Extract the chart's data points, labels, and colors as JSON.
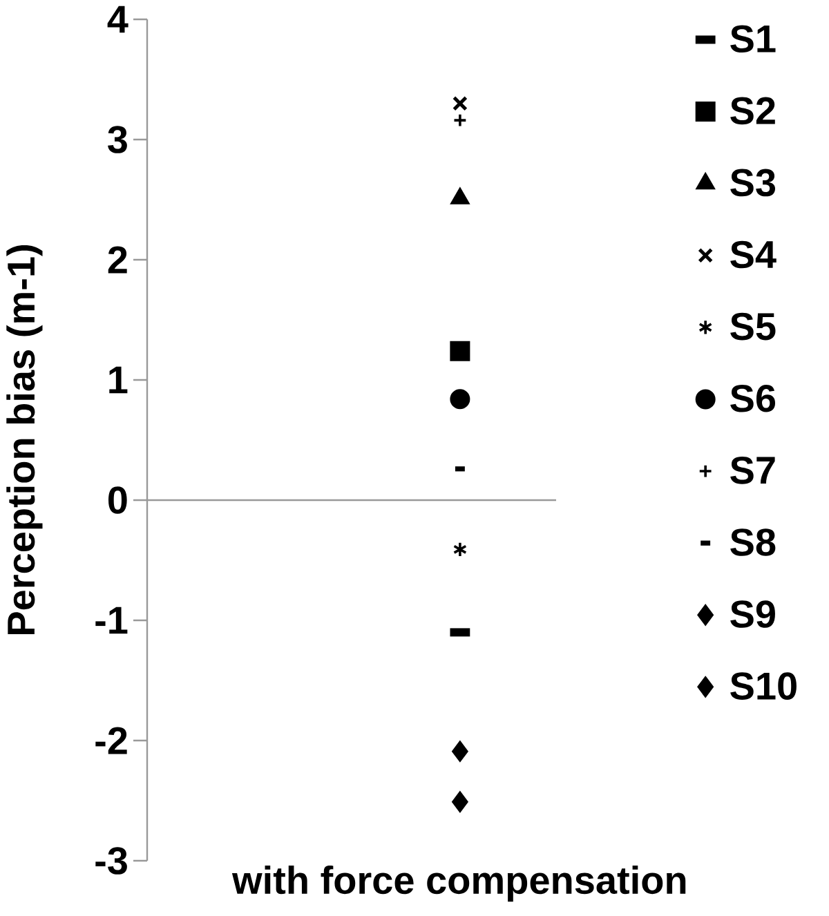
{
  "chart_data": {
    "type": "scatter",
    "ylabel": "Perception bias (m-1)",
    "categories": [
      "with force compensation"
    ],
    "ylim": [
      -3,
      4
    ],
    "yticks": [
      -3,
      -2,
      -1,
      0,
      1,
      2,
      3,
      4
    ],
    "legend": "right",
    "series": [
      {
        "name": "S1",
        "color": "#000000",
        "values": [
          -1.1
        ]
      },
      {
        "name": "S2",
        "color": "#000000",
        "marker": "square",
        "values": [
          1.24
        ]
      },
      {
        "name": "S3",
        "color": "#000000",
        "marker": "triangle",
        "values": [
          2.51
        ]
      },
      {
        "name": "S4",
        "color": "#000000",
        "marker": "cross",
        "values": [
          3.3
        ]
      },
      {
        "name": "S5",
        "color": "#000000",
        "values": [
          -0.41
        ]
      },
      {
        "name": "S6",
        "color": "#000000",
        "marker": "circle",
        "values": [
          0.84
        ]
      },
      {
        "name": "S7",
        "color": "#000000",
        "values": [
          3.16
        ]
      },
      {
        "name": "S8",
        "color": "#000000",
        "values": [
          0.26
        ]
      },
      {
        "name": "S9",
        "color": "#000000",
        "marker": "diamond",
        "values": [
          -2.09
        ]
      },
      {
        "name": "S10",
        "color": "#000000",
        "marker": "diamond",
        "values": [
          -2.51
        ]
      }
    ]
  }
}
